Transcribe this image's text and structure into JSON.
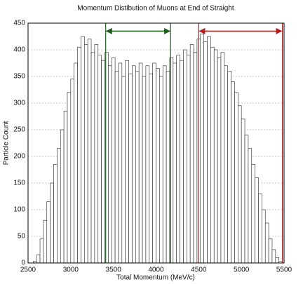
{
  "chart_data": {
    "type": "histogram",
    "title": "Momentum Distibution of Muons at End of Straight",
    "x_label": "Total Momentum (MeV/c)",
    "y_label": "Particle Count",
    "bins": [
      2560,
      2600,
      2640,
      2680,
      2720,
      2760,
      2800,
      2840,
      2880,
      2920,
      2960,
      3000,
      3040,
      3080,
      3120,
      3160,
      3200,
      3240,
      3280,
      3320,
      3360,
      3400,
      3440,
      3480,
      3520,
      3560,
      3600,
      3640,
      3680,
      3720,
      3760,
      3800,
      3840,
      3880,
      3920,
      3960,
      4000,
      4040,
      4080,
      4120,
      4160,
      4200,
      4240,
      4280,
      4320,
      4360,
      4400,
      4440,
      4480,
      4520,
      4560,
      4600,
      4640,
      4680,
      4720,
      4760,
      4800,
      4840,
      4880,
      4920,
      4960,
      5000,
      5040,
      5080,
      5120,
      5160,
      5200,
      5240,
      5280,
      5320,
      5360,
      5400,
      5440,
      5480
    ],
    "values": [
      3,
      15,
      45,
      80,
      115,
      150,
      185,
      215,
      250,
      285,
      320,
      345,
      375,
      405,
      425,
      410,
      420,
      395,
      410,
      390,
      380,
      395,
      370,
      385,
      360,
      375,
      350,
      380,
      355,
      370,
      360,
      375,
      350,
      370,
      355,
      375,
      365,
      350,
      370,
      360,
      385,
      375,
      390,
      380,
      400,
      390,
      410,
      395,
      420,
      430,
      415,
      425,
      405,
      400,
      385,
      395,
      370,
      360,
      340,
      320,
      295,
      270,
      240,
      215,
      185,
      160,
      130,
      100,
      75,
      45,
      25,
      10,
      3
    ],
    "color": "#ffffff",
    "edge_color": "#222222",
    "xlim": [
      2500,
      5500
    ],
    "ylim": [
      0,
      450
    ],
    "xticks": [
      2500,
      3000,
      3500,
      4000,
      4500,
      5000,
      5500
    ],
    "yticks": [
      0,
      50,
      100,
      150,
      200,
      250,
      300,
      350,
      400,
      450
    ],
    "grid": true,
    "ranges": [
      {
        "x": [
          3410,
          4170
        ],
        "y": 435,
        "color": "#1d5e1d"
      },
      {
        "x": [
          4500,
          5480
        ],
        "y": 435,
        "color": "#b01e1e"
      }
    ]
  }
}
